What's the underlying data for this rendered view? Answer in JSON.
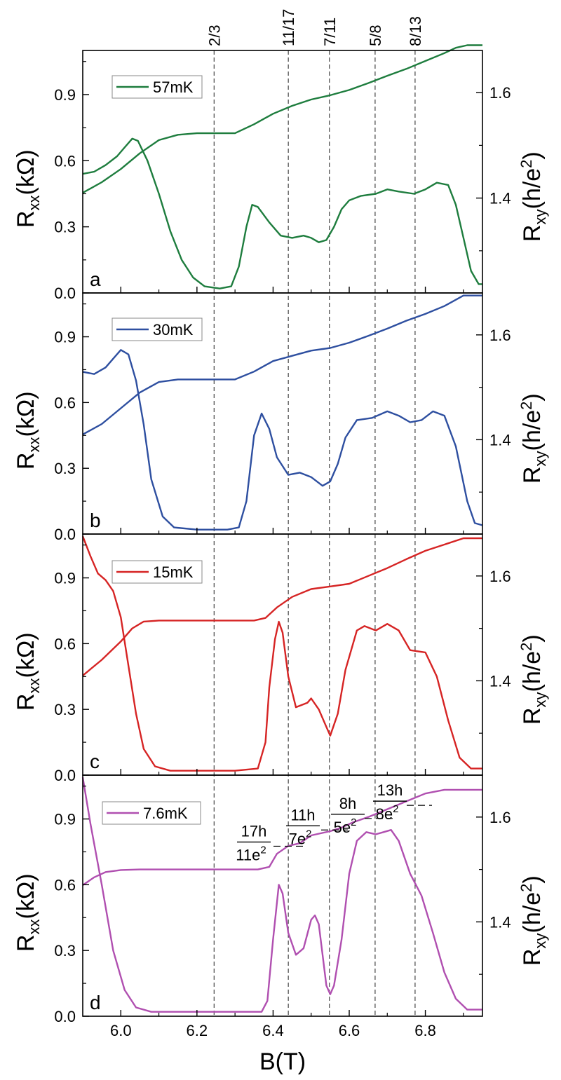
{
  "chart_data": {
    "type": "line",
    "x_axis": {
      "label": "B(T)",
      "range": [
        5.9,
        6.95
      ],
      "tick_values": [
        6.0,
        6.2,
        6.4,
        6.6,
        6.8
      ],
      "tick_labels": [
        "6.0",
        "6.2",
        "6.4",
        "6.6",
        "6.8"
      ]
    },
    "filling_markers": [
      {
        "label": "2/3",
        "B": 6.245
      },
      {
        "label": "11/17",
        "B": 6.44
      },
      {
        "label": "7/11",
        "B": 6.548
      },
      {
        "label": "5/8",
        "B": 6.668
      },
      {
        "label": "8/13",
        "B": 6.773
      }
    ],
    "left_axis": {
      "label_main": "R",
      "label_sub": "xx",
      "label_tail": "(kΩ)",
      "range": [
        0.0,
        1.1
      ],
      "tick_values": [
        0.0,
        0.3,
        0.6,
        0.9
      ],
      "tick_labels": [
        "0.0",
        "0.3",
        "0.6",
        "0.9"
      ]
    },
    "right_axis": {
      "label_main": "R",
      "label_sub": "xy",
      "label_tail": "(h/e",
      "label_sup": "2",
      "label_end": ")",
      "range": [
        1.22,
        1.68
      ],
      "tick_values": [
        1.4,
        1.6
      ],
      "tick_labels": [
        "1.4",
        "1.6"
      ]
    },
    "panels": [
      {
        "letter": "a",
        "legend": "57mK",
        "color": "#1e7d3e",
        "rxx": [
          [
            5.9,
            0.54
          ],
          [
            5.93,
            0.55
          ],
          [
            5.96,
            0.58
          ],
          [
            5.99,
            0.62
          ],
          [
            6.01,
            0.66
          ],
          [
            6.03,
            0.7
          ],
          [
            6.045,
            0.69
          ],
          [
            6.07,
            0.6
          ],
          [
            6.1,
            0.45
          ],
          [
            6.13,
            0.28
          ],
          [
            6.16,
            0.15
          ],
          [
            6.19,
            0.07
          ],
          [
            6.22,
            0.03
          ],
          [
            6.26,
            0.02
          ],
          [
            6.29,
            0.03
          ],
          [
            6.31,
            0.12
          ],
          [
            6.33,
            0.3
          ],
          [
            6.345,
            0.4
          ],
          [
            6.36,
            0.39
          ],
          [
            6.39,
            0.32
          ],
          [
            6.42,
            0.26
          ],
          [
            6.45,
            0.25
          ],
          [
            6.48,
            0.26
          ],
          [
            6.5,
            0.25
          ],
          [
            6.52,
            0.23
          ],
          [
            6.54,
            0.24
          ],
          [
            6.56,
            0.3
          ],
          [
            6.58,
            0.38
          ],
          [
            6.6,
            0.42
          ],
          [
            6.63,
            0.44
          ],
          [
            6.67,
            0.45
          ],
          [
            6.7,
            0.47
          ],
          [
            6.73,
            0.46
          ],
          [
            6.77,
            0.45
          ],
          [
            6.8,
            0.47
          ],
          [
            6.83,
            0.5
          ],
          [
            6.86,
            0.49
          ],
          [
            6.88,
            0.4
          ],
          [
            6.9,
            0.25
          ],
          [
            6.92,
            0.1
          ],
          [
            6.94,
            0.04
          ],
          [
            6.95,
            0.04
          ]
        ],
        "rxy": [
          [
            5.9,
            1.41
          ],
          [
            5.95,
            1.43
          ],
          [
            6.0,
            1.455
          ],
          [
            6.05,
            1.485
          ],
          [
            6.1,
            1.51
          ],
          [
            6.15,
            1.52
          ],
          [
            6.2,
            1.523
          ],
          [
            6.25,
            1.523
          ],
          [
            6.3,
            1.523
          ],
          [
            6.35,
            1.54
          ],
          [
            6.4,
            1.56
          ],
          [
            6.45,
            1.575
          ],
          [
            6.5,
            1.587
          ],
          [
            6.55,
            1.595
          ],
          [
            6.6,
            1.605
          ],
          [
            6.65,
            1.618
          ],
          [
            6.7,
            1.632
          ],
          [
            6.75,
            1.645
          ],
          [
            6.8,
            1.66
          ],
          [
            6.85,
            1.675
          ],
          [
            6.88,
            1.685
          ],
          [
            6.91,
            1.69
          ],
          [
            6.95,
            1.69
          ]
        ]
      },
      {
        "letter": "b",
        "legend": "30mK",
        "color": "#2e4fa0",
        "rxx": [
          [
            5.9,
            0.74
          ],
          [
            5.93,
            0.73
          ],
          [
            5.96,
            0.76
          ],
          [
            5.98,
            0.8
          ],
          [
            6.0,
            0.84
          ],
          [
            6.02,
            0.82
          ],
          [
            6.04,
            0.7
          ],
          [
            6.06,
            0.5
          ],
          [
            6.08,
            0.25
          ],
          [
            6.11,
            0.08
          ],
          [
            6.14,
            0.03
          ],
          [
            6.2,
            0.02
          ],
          [
            6.28,
            0.02
          ],
          [
            6.31,
            0.03
          ],
          [
            6.33,
            0.15
          ],
          [
            6.35,
            0.45
          ],
          [
            6.37,
            0.55
          ],
          [
            6.39,
            0.48
          ],
          [
            6.41,
            0.35
          ],
          [
            6.44,
            0.27
          ],
          [
            6.47,
            0.28
          ],
          [
            6.5,
            0.26
          ],
          [
            6.53,
            0.22
          ],
          [
            6.55,
            0.24
          ],
          [
            6.57,
            0.32
          ],
          [
            6.59,
            0.44
          ],
          [
            6.62,
            0.52
          ],
          [
            6.66,
            0.53
          ],
          [
            6.7,
            0.56
          ],
          [
            6.73,
            0.54
          ],
          [
            6.76,
            0.51
          ],
          [
            6.79,
            0.52
          ],
          [
            6.82,
            0.56
          ],
          [
            6.85,
            0.54
          ],
          [
            6.88,
            0.4
          ],
          [
            6.91,
            0.15
          ],
          [
            6.93,
            0.05
          ],
          [
            6.95,
            0.04
          ]
        ],
        "rxy": [
          [
            5.9,
            1.41
          ],
          [
            5.95,
            1.43
          ],
          [
            6.0,
            1.46
          ],
          [
            6.05,
            1.49
          ],
          [
            6.1,
            1.51
          ],
          [
            6.15,
            1.515
          ],
          [
            6.3,
            1.515
          ],
          [
            6.35,
            1.53
          ],
          [
            6.4,
            1.55
          ],
          [
            6.45,
            1.56
          ],
          [
            6.5,
            1.57
          ],
          [
            6.55,
            1.575
          ],
          [
            6.6,
            1.585
          ],
          [
            6.65,
            1.598
          ],
          [
            6.7,
            1.612
          ],
          [
            6.75,
            1.627
          ],
          [
            6.8,
            1.64
          ],
          [
            6.85,
            1.655
          ],
          [
            6.9,
            1.675
          ],
          [
            6.95,
            1.675
          ]
        ]
      },
      {
        "letter": "c",
        "legend": "15mK",
        "color": "#d62424",
        "rxx": [
          [
            5.9,
            1.09
          ],
          [
            5.92,
            1.0
          ],
          [
            5.94,
            0.92
          ],
          [
            5.96,
            0.89
          ],
          [
            5.98,
            0.84
          ],
          [
            6.0,
            0.72
          ],
          [
            6.02,
            0.5
          ],
          [
            6.04,
            0.28
          ],
          [
            6.06,
            0.12
          ],
          [
            6.09,
            0.04
          ],
          [
            6.13,
            0.02
          ],
          [
            6.2,
            0.02
          ],
          [
            6.3,
            0.02
          ],
          [
            6.36,
            0.03
          ],
          [
            6.38,
            0.15
          ],
          [
            6.39,
            0.4
          ],
          [
            6.405,
            0.62
          ],
          [
            6.415,
            0.7
          ],
          [
            6.425,
            0.65
          ],
          [
            6.44,
            0.45
          ],
          [
            6.46,
            0.31
          ],
          [
            6.49,
            0.33
          ],
          [
            6.5,
            0.35
          ],
          [
            6.52,
            0.3
          ],
          [
            6.54,
            0.22
          ],
          [
            6.55,
            0.18
          ],
          [
            6.57,
            0.28
          ],
          [
            6.59,
            0.48
          ],
          [
            6.62,
            0.66
          ],
          [
            6.64,
            0.68
          ],
          [
            6.67,
            0.66
          ],
          [
            6.7,
            0.69
          ],
          [
            6.73,
            0.66
          ],
          [
            6.76,
            0.57
          ],
          [
            6.8,
            0.56
          ],
          [
            6.83,
            0.45
          ],
          [
            6.86,
            0.25
          ],
          [
            6.89,
            0.08
          ],
          [
            6.92,
            0.03
          ],
          [
            6.95,
            0.03
          ]
        ],
        "rxy": [
          [
            5.9,
            1.41
          ],
          [
            5.95,
            1.44
          ],
          [
            6.0,
            1.475
          ],
          [
            6.03,
            1.5
          ],
          [
            6.06,
            1.513
          ],
          [
            6.1,
            1.515
          ],
          [
            6.35,
            1.515
          ],
          [
            6.38,
            1.52
          ],
          [
            6.41,
            1.54
          ],
          [
            6.45,
            1.56
          ],
          [
            6.5,
            1.575
          ],
          [
            6.55,
            1.58
          ],
          [
            6.6,
            1.585
          ],
          [
            6.65,
            1.6
          ],
          [
            6.7,
            1.615
          ],
          [
            6.75,
            1.632
          ],
          [
            6.8,
            1.648
          ],
          [
            6.85,
            1.66
          ],
          [
            6.9,
            1.672
          ],
          [
            6.95,
            1.672
          ]
        ]
      },
      {
        "letter": "d",
        "legend": "7.6mK",
        "color": "#b04fb0",
        "rxx": [
          [
            5.9,
            1.09
          ],
          [
            5.92,
            0.88
          ],
          [
            5.95,
            0.6
          ],
          [
            5.98,
            0.3
          ],
          [
            6.01,
            0.12
          ],
          [
            6.04,
            0.04
          ],
          [
            6.08,
            0.02
          ],
          [
            6.2,
            0.02
          ],
          [
            6.37,
            0.02
          ],
          [
            6.385,
            0.07
          ],
          [
            6.4,
            0.35
          ],
          [
            6.415,
            0.6
          ],
          [
            6.425,
            0.56
          ],
          [
            6.44,
            0.38
          ],
          [
            6.46,
            0.28
          ],
          [
            6.48,
            0.31
          ],
          [
            6.5,
            0.44
          ],
          [
            6.51,
            0.46
          ],
          [
            6.52,
            0.42
          ],
          [
            6.53,
            0.28
          ],
          [
            6.54,
            0.14
          ],
          [
            6.55,
            0.1
          ],
          [
            6.56,
            0.14
          ],
          [
            6.58,
            0.35
          ],
          [
            6.6,
            0.65
          ],
          [
            6.62,
            0.8
          ],
          [
            6.645,
            0.84
          ],
          [
            6.67,
            0.83
          ],
          [
            6.69,
            0.84
          ],
          [
            6.71,
            0.85
          ],
          [
            6.73,
            0.8
          ],
          [
            6.76,
            0.65
          ],
          [
            6.79,
            0.55
          ],
          [
            6.82,
            0.38
          ],
          [
            6.85,
            0.2
          ],
          [
            6.88,
            0.08
          ],
          [
            6.91,
            0.03
          ],
          [
            6.95,
            0.03
          ]
        ],
        "rxy": [
          [
            5.9,
            1.47
          ],
          [
            5.93,
            1.485
          ],
          [
            5.96,
            1.495
          ],
          [
            6.0,
            1.499
          ],
          [
            6.05,
            1.5
          ],
          [
            6.36,
            1.5
          ],
          [
            6.39,
            1.505
          ],
          [
            6.41,
            1.53
          ],
          [
            6.44,
            1.545
          ],
          [
            6.47,
            1.55
          ],
          [
            6.5,
            1.565
          ],
          [
            6.55,
            1.573
          ],
          [
            6.58,
            1.58
          ],
          [
            6.61,
            1.59
          ],
          [
            6.65,
            1.6
          ],
          [
            6.7,
            1.615
          ],
          [
            6.75,
            1.63
          ],
          [
            6.8,
            1.645
          ],
          [
            6.85,
            1.652
          ],
          [
            6.9,
            1.652
          ],
          [
            6.95,
            1.652
          ]
        ]
      }
    ],
    "plateau_labels": [
      {
        "numerator": "17h",
        "denom_main": "11e",
        "denom_sup": "2",
        "rxy": 1.547
      },
      {
        "numerator": "11h",
        "denom_main": "7e",
        "denom_sup": "2",
        "rxy": 1.578
      },
      {
        "numerator": "8h",
        "denom_main": "5e",
        "denom_sup": "2",
        "rxy": 1.6
      },
      {
        "numerator": "13h",
        "denom_main": "8e",
        "denom_sup": "2",
        "rxy": 1.625
      }
    ]
  }
}
